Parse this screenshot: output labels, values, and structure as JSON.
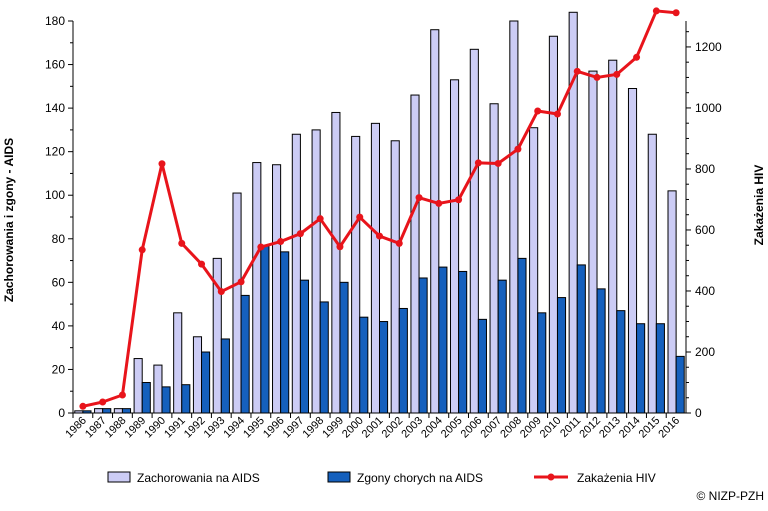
{
  "chart_data": {
    "type": "bar+line",
    "categories": [
      "1986",
      "1987",
      "1988",
      "1989",
      "1990",
      "1991",
      "1992",
      "1993",
      "1994",
      "1995",
      "1996",
      "1997",
      "1998",
      "1999",
      "2000",
      "2001",
      "2002",
      "2003",
      "2004",
      "2005",
      "2006",
      "2007",
      "2008",
      "2009",
      "2010",
      "2011",
      "2012",
      "2013",
      "2014",
      "2015",
      "2016"
    ],
    "series": [
      {
        "name": "Zachorowania na AIDS",
        "type": "bar",
        "axis": "left",
        "color": "#ccccf5",
        "values": [
          1,
          2,
          2,
          25,
          22,
          46,
          35,
          71,
          101,
          115,
          114,
          128,
          130,
          138,
          127,
          133,
          125,
          146,
          176,
          153,
          167,
          142,
          180,
          131,
          173,
          184,
          157,
          162,
          149,
          128,
          102
        ]
      },
      {
        "name": "Zgony chorych na AIDS",
        "type": "bar",
        "axis": "left",
        "color": "#1560bd",
        "values": [
          1,
          2,
          2,
          14,
          12,
          13,
          28,
          34,
          54,
          77,
          74,
          61,
          51,
          60,
          44,
          42,
          48,
          62,
          67,
          65,
          43,
          61,
          71,
          46,
          53,
          68,
          57,
          47,
          41,
          41,
          26
        ]
      },
      {
        "name": "Zakażenia HIV",
        "type": "line",
        "axis": "right",
        "color": "#e8141b",
        "values": [
          22,
          36,
          59,
          535,
          817,
          556,
          488,
          398,
          430,
          544,
          562,
          588,
          637,
          545,
          642,
          580,
          556,
          706,
          687,
          699,
          820,
          818,
          865,
          990,
          980,
          1120,
          1100,
          1110,
          1166,
          1318,
          1312
        ]
      }
    ],
    "ylabel": "Zachorowania i zgony - AIDS",
    "y2label": "Zakażenia HIV",
    "ylim": [
      0,
      180
    ],
    "y2lim": [
      0,
      1285
    ],
    "yticks": [
      "0",
      "20",
      "40",
      "60",
      "80",
      "100",
      "120",
      "140",
      "160",
      "180"
    ],
    "y2ticks": [
      "0",
      "200",
      "400",
      "600",
      "800",
      "1000",
      "1200"
    ],
    "grid": false,
    "legend": "bottom"
  },
  "copyright": "© NIZP-PZH"
}
